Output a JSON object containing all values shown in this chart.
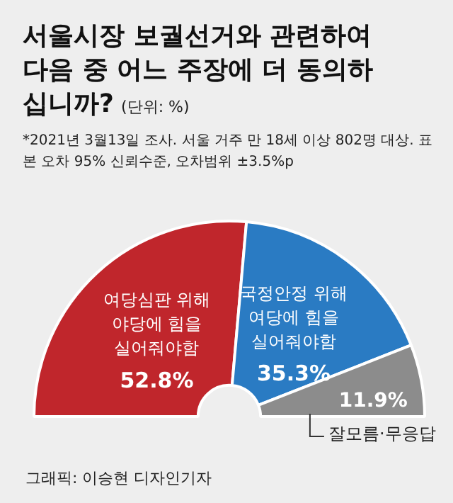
{
  "chart_data": {
    "type": "donut",
    "title": "서울시장 보궐선거와 관련하여 다음 중 어느 주장에 더 동의하십니까?",
    "subtitle": "(단위: %)",
    "annotations": [
      "*2021년 3월13일 조사. 서울 거주 만 18세 이상 802명 대상. 표본 오차 95% 신뢰수준, 오차범위 ±3.5%p",
      "그래픽: 이승현 디자인기자"
    ],
    "categories": [
      "여당심판 위해 야당에 힘을 실어줘야함",
      "국정안정 위해 여당에 힘을 실어줘야함",
      "잘모름·무응답"
    ],
    "values": [
      52.8,
      35.3,
      11.9
    ],
    "value_labels": [
      "52.8%",
      "35.3%",
      "11.9%"
    ],
    "colors": [
      "#c0262c",
      "#2a7bc3",
      "#8c8c8c"
    ],
    "legend": false
  }
}
